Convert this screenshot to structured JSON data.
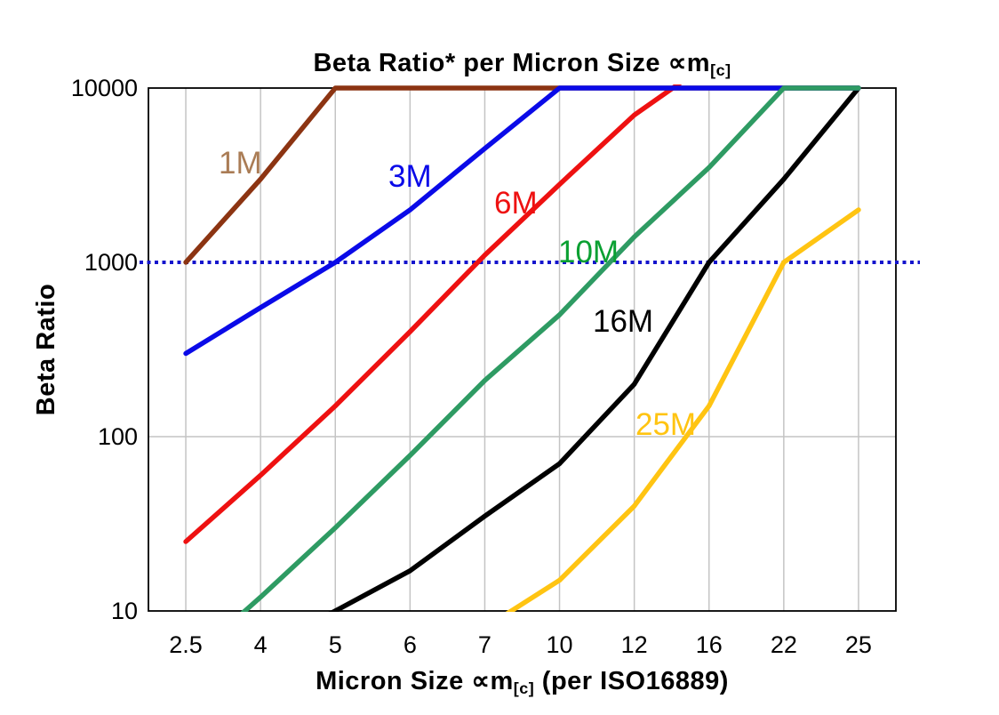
{
  "page": {
    "background": "#FFFFFF"
  },
  "chart_data": {
    "type": "line",
    "title": {
      "main": "Beta Ratio* per Micron Size ∝m",
      "subscript": "[c]"
    },
    "xlabel": {
      "main": "Micron Size ∝m",
      "subscript": "[c]",
      "suffix": " (per ISO16889)"
    },
    "ylabel": "Beta Ratio",
    "x_categories": [
      "2.5",
      "4",
      "5",
      "6",
      "7",
      "10",
      "12",
      "16",
      "22",
      "25"
    ],
    "y_scale": "log",
    "ylim": [
      10,
      10000
    ],
    "y_ticks": [
      "10000",
      "1000",
      "100",
      "10"
    ],
    "y_gridlines": [
      100
    ],
    "grid_color": "#C4C4C4",
    "border_color": "#000000",
    "reference_line": {
      "value": 1000,
      "color": "#1414CC",
      "style": "dotted"
    },
    "series": [
      {
        "label": "1M",
        "line_color": "#8C3412",
        "label_color": "#AA7C55",
        "points": [
          [
            2.5,
            1000
          ],
          [
            4,
            3000
          ],
          [
            5,
            10000
          ],
          [
            25,
            10000
          ]
        ]
      },
      {
        "label": "3M",
        "line_color": "#0A0AE8",
        "label_color": "#0A0AE8",
        "points": [
          [
            2.5,
            300
          ],
          [
            4,
            550
          ],
          [
            5,
            1000
          ],
          [
            6,
            2000
          ],
          [
            7,
            4500
          ],
          [
            10,
            10000
          ],
          [
            25,
            10000
          ]
        ]
      },
      {
        "label": "6M",
        "line_color": "#EE1111",
        "label_color": "#EE1111",
        "points": [
          [
            2.5,
            25
          ],
          [
            4,
            60
          ],
          [
            5,
            150
          ],
          [
            6,
            400
          ],
          [
            7,
            1100
          ],
          [
            10,
            2800
          ],
          [
            12,
            7000
          ],
          [
            16,
            14000
          ]
        ]
      },
      {
        "label": "10M",
        "line_color": "#2E9B63",
        "label_color": "#0AA032",
        "points": [
          [
            2.5,
            5
          ],
          [
            4,
            12
          ],
          [
            5,
            30
          ],
          [
            6,
            78
          ],
          [
            7,
            210
          ],
          [
            10,
            500
          ],
          [
            12,
            1400
          ],
          [
            16,
            3500
          ],
          [
            22,
            10000
          ],
          [
            25,
            10000
          ]
        ]
      },
      {
        "label": "16M",
        "line_color": "#000000",
        "label_color": "#000000",
        "points": [
          [
            4,
            6
          ],
          [
            5,
            10
          ],
          [
            6,
            17
          ],
          [
            7,
            35
          ],
          [
            10,
            70
          ],
          [
            12,
            200
          ],
          [
            16,
            1000
          ],
          [
            22,
            3000
          ],
          [
            25,
            10000
          ]
        ]
      },
      {
        "label": "25M",
        "line_color": "#FFC412",
        "label_color": "#FFC412",
        "points": [
          [
            7,
            8
          ],
          [
            10,
            15
          ],
          [
            12,
            40
          ],
          [
            16,
            150
          ],
          [
            22,
            1000
          ],
          [
            25,
            2000
          ]
        ]
      }
    ],
    "draw_order": [
      "6M",
      "16M",
      "25M",
      "1M",
      "3M",
      "10M"
    ],
    "legend_position": "inline-labels"
  }
}
